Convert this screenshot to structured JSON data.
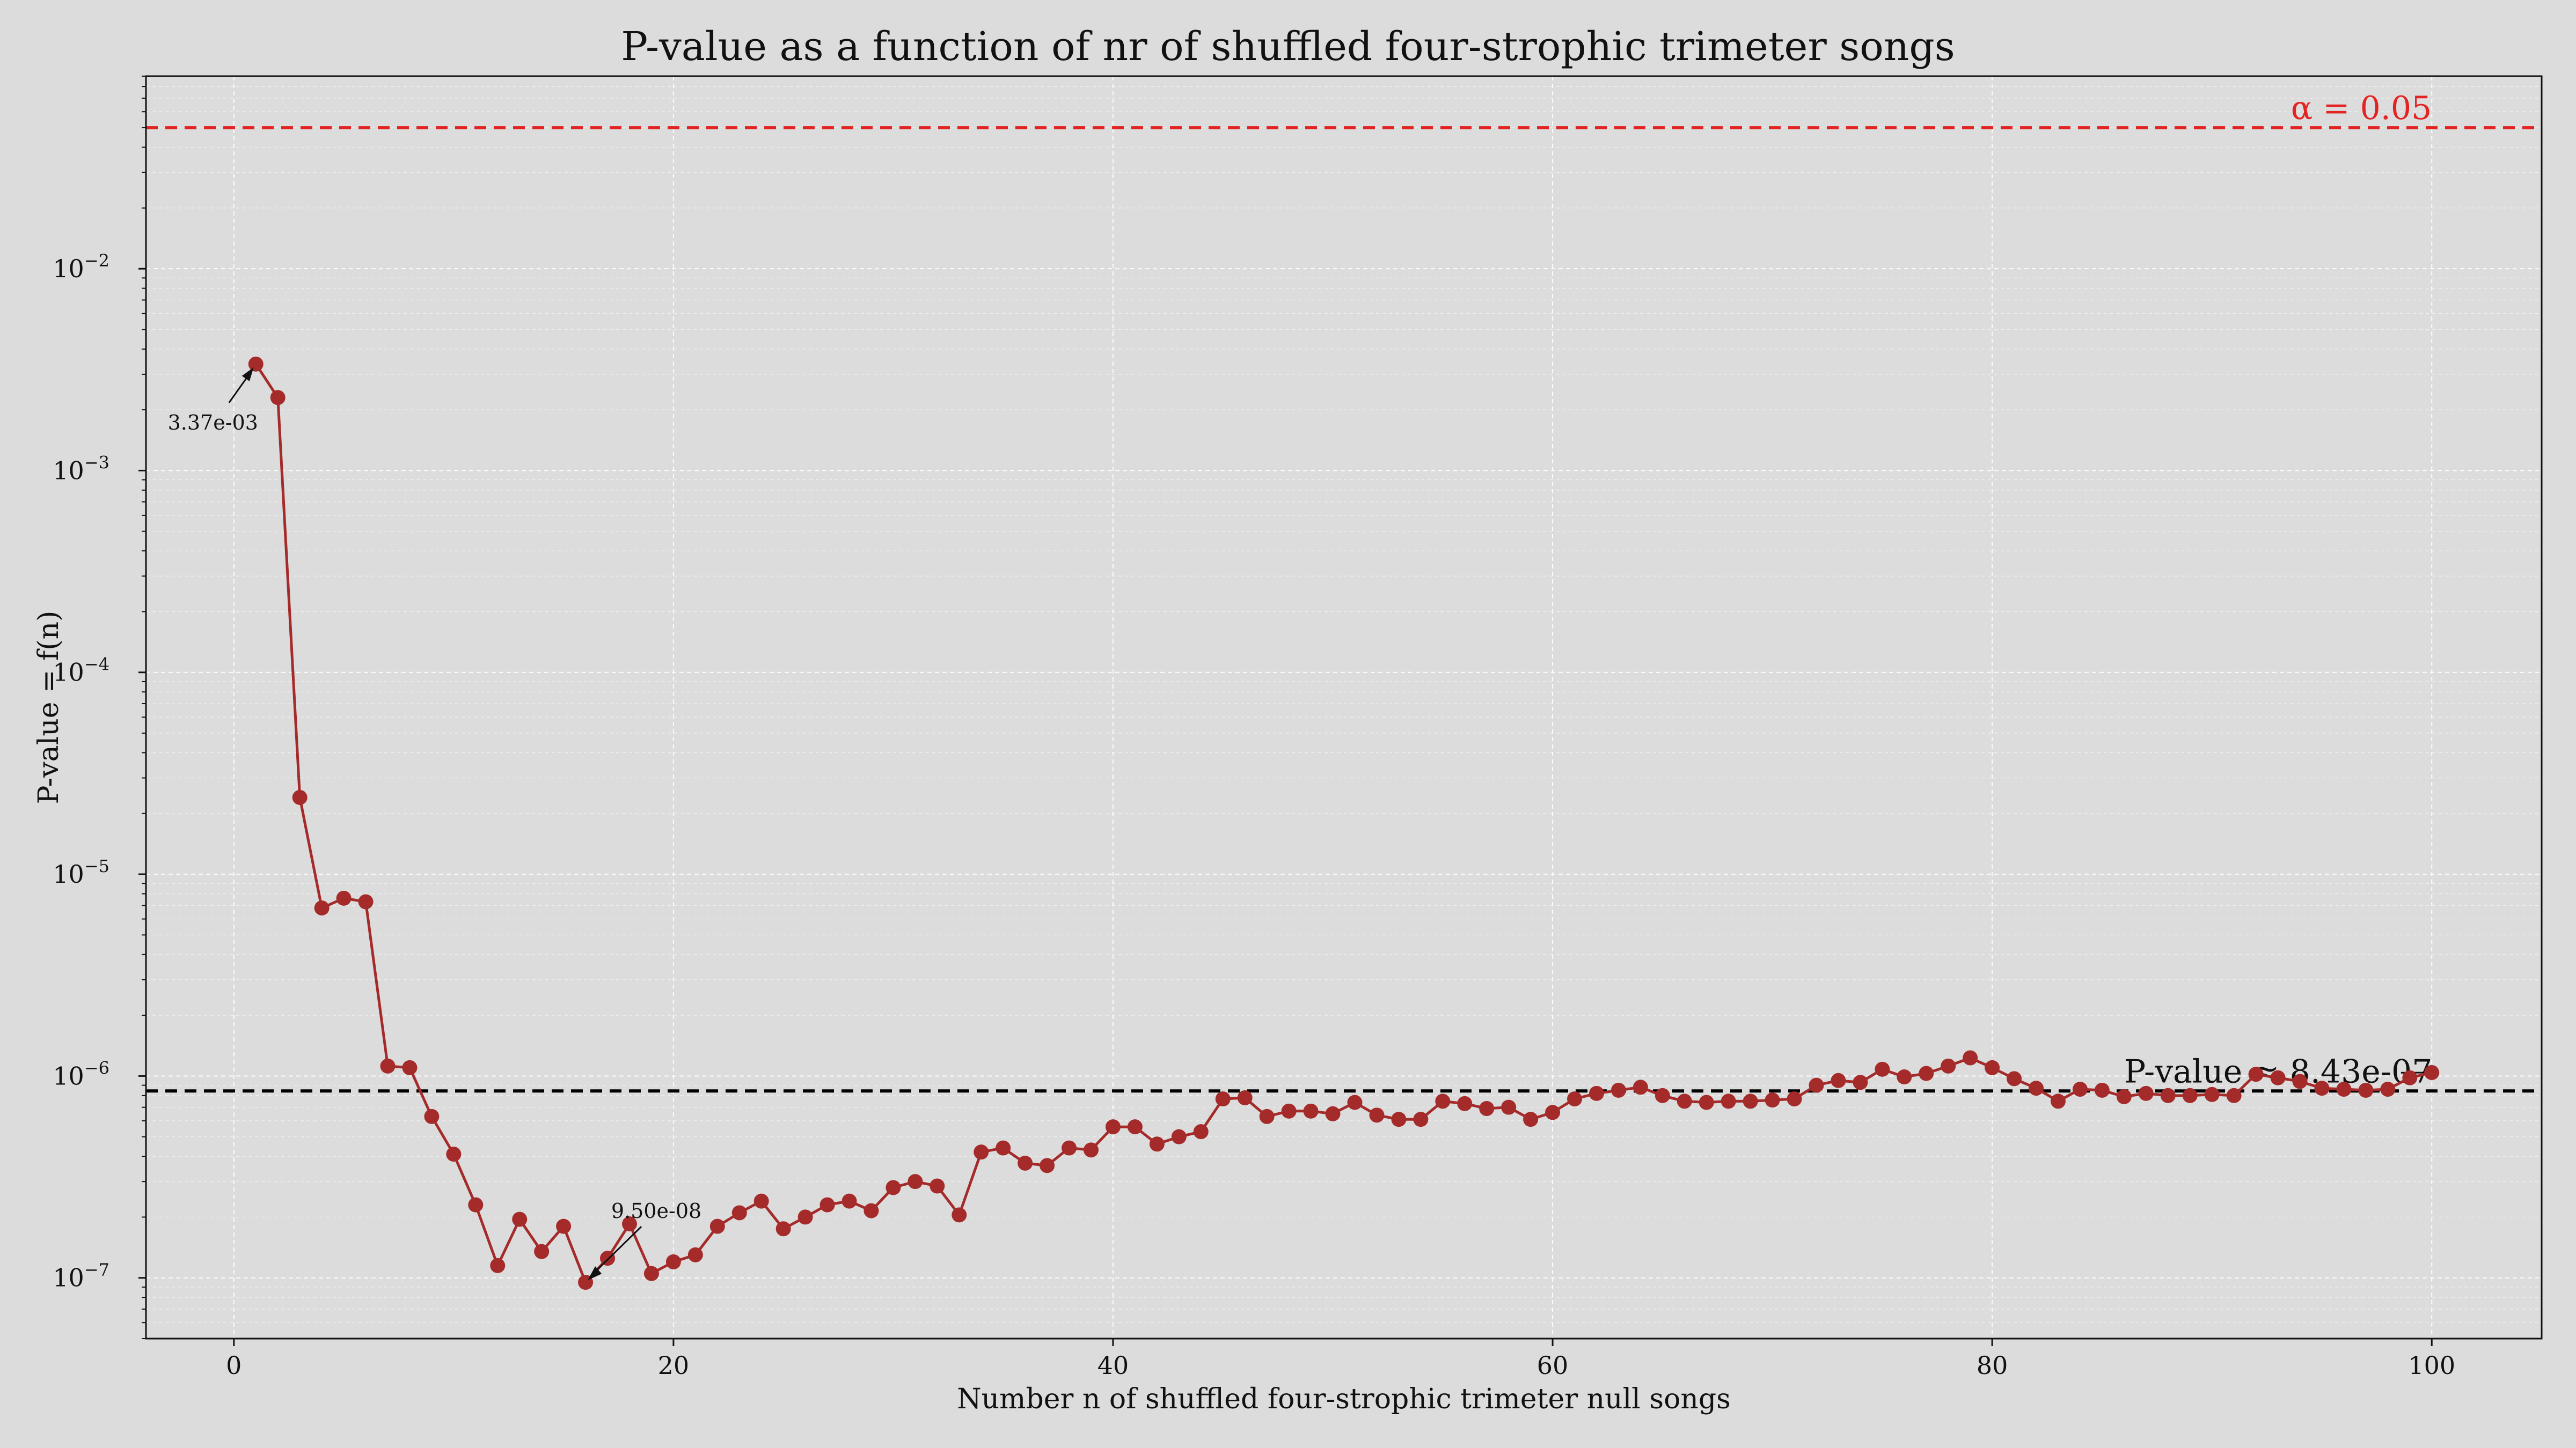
{
  "chart_data": {
    "type": "line",
    "title": "P-value as a function of nr of shuffled four-strophic trimeter songs",
    "xlabel": "Number n of shuffled four-strophic trimeter null songs",
    "ylabel": "P-value = f(n)",
    "xlim": [
      -4,
      105
    ],
    "ylim": [
      5e-08,
      0.09
    ],
    "yscale": "log",
    "grid": true,
    "x_ticks": [
      0,
      20,
      40,
      60,
      80,
      100
    ],
    "y_ticks": [
      {
        "value": 1e-07,
        "base": "10",
        "exp": "−7"
      },
      {
        "value": 1e-06,
        "base": "10",
        "exp": "−6"
      },
      {
        "value": 1e-05,
        "base": "10",
        "exp": "−5"
      },
      {
        "value": 0.0001,
        "base": "10",
        "exp": "−4"
      },
      {
        "value": 0.001,
        "base": "10",
        "exp": "−3"
      },
      {
        "value": 0.01,
        "base": "10",
        "exp": "−2"
      }
    ],
    "series": [
      {
        "color": "#a52a2a",
        "x": [
          1,
          2,
          3,
          4,
          5,
          6,
          7,
          8,
          9,
          10,
          11,
          12,
          13,
          14,
          15,
          16,
          17,
          18,
          19,
          20,
          21,
          22,
          23,
          24,
          25,
          26,
          27,
          28,
          29,
          30,
          31,
          32,
          33,
          34,
          35,
          36,
          37,
          38,
          39,
          40,
          41,
          42,
          43,
          44,
          45,
          46,
          47,
          48,
          49,
          50,
          51,
          52,
          53,
          54,
          55,
          56,
          57,
          58,
          59,
          60,
          61,
          62,
          63,
          64,
          65,
          66,
          67,
          68,
          69,
          70,
          71,
          72,
          73,
          74,
          75,
          76,
          77,
          78,
          79,
          80,
          81,
          82,
          83,
          84,
          85,
          86,
          87,
          88,
          89,
          90,
          91,
          92,
          93,
          94,
          95,
          96,
          97,
          98,
          99,
          100
        ],
        "y": [
          0.00337,
          0.0023,
          2.4e-05,
          6.8e-06,
          7.6e-06,
          7.3e-06,
          1.12e-06,
          1.1e-06,
          6.3e-07,
          4.1e-07,
          2.3e-07,
          1.15e-07,
          1.95e-07,
          1.35e-07,
          1.8e-07,
          9.5e-08,
          1.25e-07,
          1.85e-07,
          1.05e-07,
          1.2e-07,
          1.3e-07,
          1.8e-07,
          2.1e-07,
          2.4e-07,
          1.75e-07,
          2e-07,
          2.3e-07,
          2.4e-07,
          2.15e-07,
          2.8e-07,
          3e-07,
          2.85e-07,
          2.05e-07,
          4.2e-07,
          4.4e-07,
          3.7e-07,
          3.6e-07,
          4.4e-07,
          4.3e-07,
          5.6e-07,
          5.6e-07,
          4.6e-07,
          5e-07,
          5.3e-07,
          7.7e-07,
          7.8e-07,
          6.3e-07,
          6.7e-07,
          6.7e-07,
          6.5e-07,
          7.4e-07,
          6.4e-07,
          6.1e-07,
          6.1e-07,
          7.5e-07,
          7.3e-07,
          6.9e-07,
          7e-07,
          6.1e-07,
          6.6e-07,
          7.7e-07,
          8.2e-07,
          8.5e-07,
          8.8e-07,
          8e-07,
          7.5e-07,
          7.4e-07,
          7.5e-07,
          7.5e-07,
          7.6e-07,
          7.7e-07,
          9e-07,
          9.5e-07,
          9.3e-07,
          1.08e-06,
          9.9e-07,
          1.03e-06,
          1.12e-06,
          1.23e-06,
          1.1e-06,
          9.7e-07,
          8.7e-07,
          7.5e-07,
          8.6e-07,
          8.5e-07,
          7.9e-07,
          8.2e-07,
          8e-07,
          8e-07,
          8.1e-07,
          8e-07,
          1.02e-06,
          9.8e-07,
          9.4e-07,
          8.7e-07,
          8.6e-07,
          8.5e-07,
          8.6e-07,
          9.8e-07,
          1.04e-06
        ]
      }
    ],
    "reference_lines": [
      {
        "y": 0.05,
        "color": "#e32222",
        "style": "dashed",
        "label": "α = 0.05"
      },
      {
        "y": 8.43e-07,
        "color": "#000000",
        "style": "dashed",
        "label": "P-value ≈ 8.43e-07"
      }
    ],
    "annotations": [
      {
        "text": "3.37e-03",
        "x": 1,
        "y": 0.00337
      },
      {
        "text": "9.50e-08",
        "x": 16,
        "y": 9.5e-08
      }
    ]
  }
}
